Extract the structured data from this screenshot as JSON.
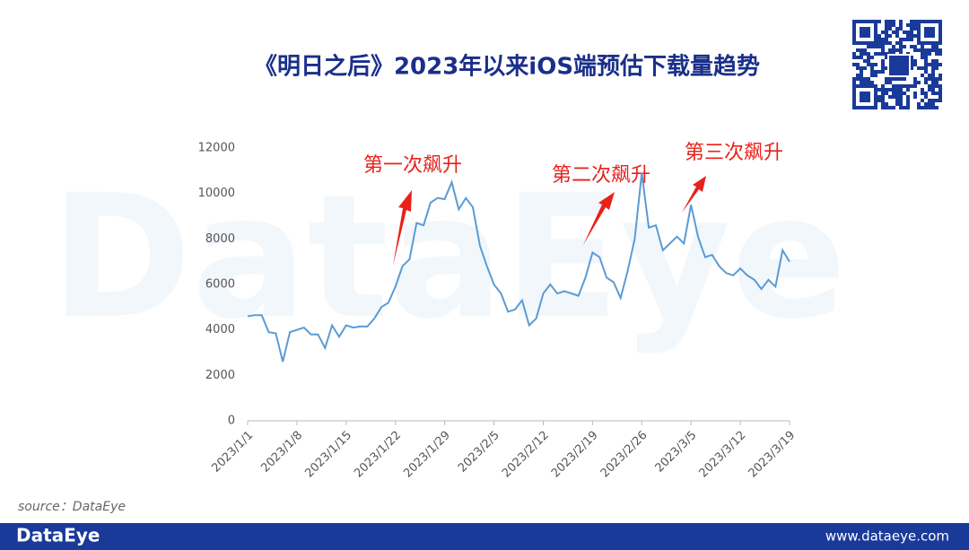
{
  "chart_data": {
    "type": "line",
    "title": "《明日之后》2023年以来iOS端预估下载量趋势",
    "watermark": "DataEye",
    "source": "source：DataEye",
    "footer_brand": "DataEye",
    "footer_url": "www.dataeye.com",
    "annotations": [
      "第一次飙升",
      "第二次飙升",
      "第三次飙升"
    ],
    "categories": [
      "2023/1/1",
      null,
      null,
      null,
      null,
      null,
      null,
      "2023/1/8",
      null,
      null,
      null,
      null,
      null,
      null,
      "2023/1/15",
      null,
      null,
      null,
      null,
      null,
      null,
      "2023/1/22",
      null,
      null,
      null,
      null,
      null,
      null,
      "2023/1/29",
      null,
      null,
      null,
      null,
      null,
      null,
      "2023/2/5",
      null,
      null,
      null,
      null,
      null,
      null,
      "2023/2/12",
      null,
      null,
      null,
      null,
      null,
      null,
      "2023/2/19",
      null,
      null,
      null,
      null,
      null,
      null,
      "2023/2/26",
      null,
      null,
      null,
      null,
      null,
      null,
      "2023/3/5",
      null,
      null,
      null,
      null,
      null,
      null,
      "2023/3/12",
      null,
      null,
      null,
      null,
      null,
      null,
      "2023/3/19"
    ],
    "values": [
      4600,
      4650,
      4650,
      3900,
      3850,
      2600,
      3900,
      4000,
      4100,
      3800,
      3800,
      3200,
      4200,
      3700,
      4200,
      4100,
      4150,
      4150,
      4500,
      5000,
      5200,
      5900,
      6800,
      7100,
      8700,
      8600,
      9600,
      9800,
      9750,
      10500,
      9300,
      9800,
      9400,
      7700,
      6800,
      6000,
      5600,
      4800,
      4900,
      5300,
      4200,
      4500,
      5600,
      6000,
      5600,
      5700,
      5600,
      5500,
      6300,
      7400,
      7200,
      6300,
      6100,
      5400,
      6600,
      8000,
      10900,
      8500,
      8600,
      7500,
      7800,
      8100,
      7800,
      9500,
      8100,
      7200,
      7300,
      6800,
      6500,
      6400,
      6700,
      6400,
      6200,
      5800,
      6200,
      5900,
      7500,
      7000
    ],
    "color": "#5b9bd5",
    "ylim": [
      0,
      12000
    ],
    "yticks": [
      0,
      2000,
      4000,
      6000,
      8000,
      10000,
      12000
    ],
    "grid": false
  }
}
